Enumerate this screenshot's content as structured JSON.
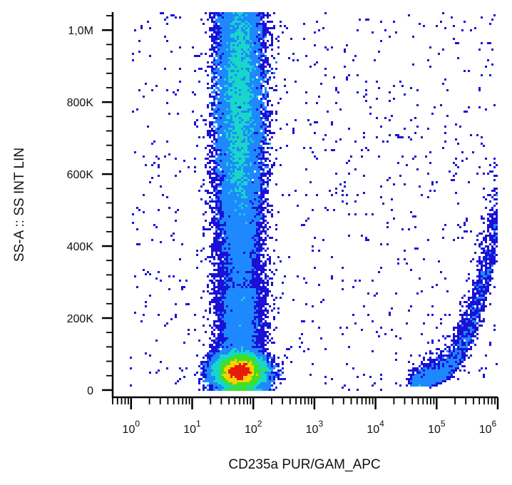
{
  "chart_data": {
    "type": "scatter",
    "subtype": "flow-cytometry-density-dot-plot",
    "title": "",
    "xlabel": "CD235a PUR/GAM_APC",
    "ylabel": "SS-A :: SS INT LIN",
    "x_scale": "log",
    "y_scale": "linear",
    "xlim": [
      0.5,
      1000000
    ],
    "ylim": [
      -20000,
      1050000
    ],
    "grid": false,
    "legend": "none",
    "x_ticks": [
      {
        "value": 1,
        "base": "10",
        "exp": "0"
      },
      {
        "value": 10,
        "base": "10",
        "exp": "1"
      },
      {
        "value": 100,
        "base": "10",
        "exp": "2"
      },
      {
        "value": 1000,
        "base": "10",
        "exp": "3"
      },
      {
        "value": 10000,
        "base": "10",
        "exp": "4"
      },
      {
        "value": 100000,
        "base": "10",
        "exp": "5"
      },
      {
        "value": 1000000,
        "base": "10",
        "exp": "6"
      }
    ],
    "y_ticks": [
      {
        "value": 0,
        "label": "0"
      },
      {
        "value": 200000,
        "label": "200K"
      },
      {
        "value": 400000,
        "label": "400K"
      },
      {
        "value": 600000,
        "label": "600K"
      },
      {
        "value": 800000,
        "label": "800K"
      },
      {
        "value": 1000000,
        "label": "1,0M"
      }
    ],
    "populations": [
      {
        "shape": "vertical-band",
        "x_center": 60,
        "x_spread_decades": 0.18,
        "y_range": [
          120000,
          1050000
        ],
        "y_peak": 780000,
        "relative_density": "high"
      },
      {
        "shape": "cluster",
        "x_center": 60,
        "x_spread_decades": 0.2,
        "y_center": 50000,
        "y_spread": 25000,
        "relative_density": "very-high"
      },
      {
        "shape": "curved-tail",
        "x_range": [
          40000,
          1000000
        ],
        "y_range": [
          10000,
          450000
        ],
        "relative_density": "low"
      },
      {
        "shape": "scattered-background",
        "x_range": [
          1,
          1000000
        ],
        "y_range": [
          0,
          1050000
        ],
        "relative_density": "very-low"
      }
    ],
    "colors": {
      "lowest": "#1a10d6",
      "low": "#1e88ff",
      "mid": "#18d6c8",
      "high": "#3fe020",
      "higher": "#ffd000",
      "highest": "#e81a0a",
      "axis": "#000000"
    }
  }
}
